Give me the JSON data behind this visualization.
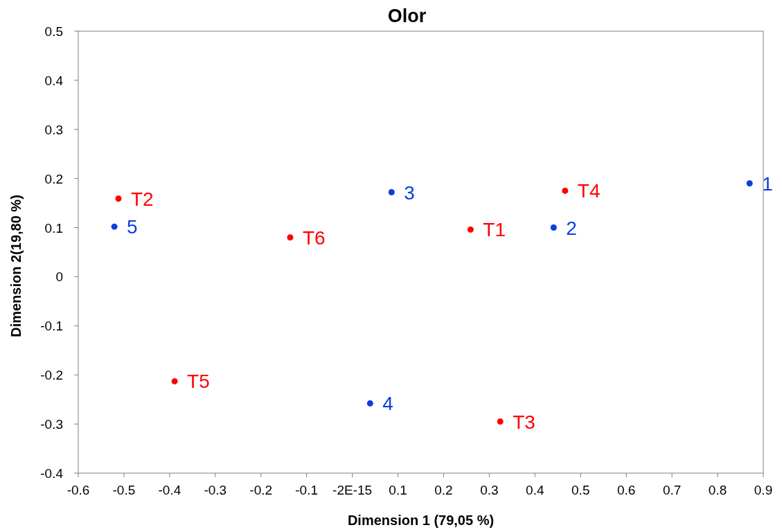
{
  "chart_data": {
    "type": "scatter",
    "title": "Olor",
    "xlabel": "Dimension 1 (79,05 %)",
    "ylabel": "Dimension 2(19,80 %)",
    "xlim": [
      -0.6,
      0.9
    ],
    "xticks": [
      -0.6,
      -0.5,
      -0.4,
      -0.3,
      -0.2,
      -0.1,
      {
        "value": 0,
        "label": "-2E-15"
      },
      0.1,
      0.2,
      0.3,
      0.4,
      0.5,
      0.6,
      0.7,
      0.8,
      0.9
    ],
    "ylim": [
      -0.4,
      0.5
    ],
    "yticks": [
      -0.4,
      -0.3,
      -0.2,
      -0.1,
      0,
      0.1,
      0.2,
      0.3,
      0.4,
      0.5
    ],
    "grid": false,
    "marker": "circle",
    "series": [
      {
        "color": "#ff0000",
        "x": [
          0.259,
          -0.512,
          0.324,
          0.466,
          -0.389,
          -0.136
        ],
        "values": [
          0.096,
          0.159,
          -0.295,
          0.175,
          -0.213,
          0.08
        ]
      },
      {
        "color": "#0a3fe0",
        "x": [
          0.87,
          0.441,
          0.086,
          0.039,
          -0.521
        ],
        "values": [
          0.19,
          0.1,
          0.172,
          -0.258,
          0.102
        ]
      }
    ],
    "annotations": [
      {
        "text": "T1",
        "x": 0.259,
        "y": 0.096
      },
      {
        "text": "T2",
        "x": -0.512,
        "y": 0.159
      },
      {
        "text": "T3",
        "x": 0.324,
        "y": -0.295
      },
      {
        "text": "T4",
        "x": 0.466,
        "y": 0.175
      },
      {
        "text": "T5",
        "x": -0.389,
        "y": -0.213
      },
      {
        "text": "T6",
        "x": -0.136,
        "y": 0.08
      },
      {
        "text": "1",
        "x": 0.87,
        "y": 0.19
      },
      {
        "text": "2",
        "x": 0.441,
        "y": 0.1
      },
      {
        "text": "3",
        "x": 0.086,
        "y": 0.172
      },
      {
        "text": "4",
        "x": 0.039,
        "y": -0.258
      },
      {
        "text": "5",
        "x": -0.521,
        "y": 0.102
      }
    ]
  }
}
